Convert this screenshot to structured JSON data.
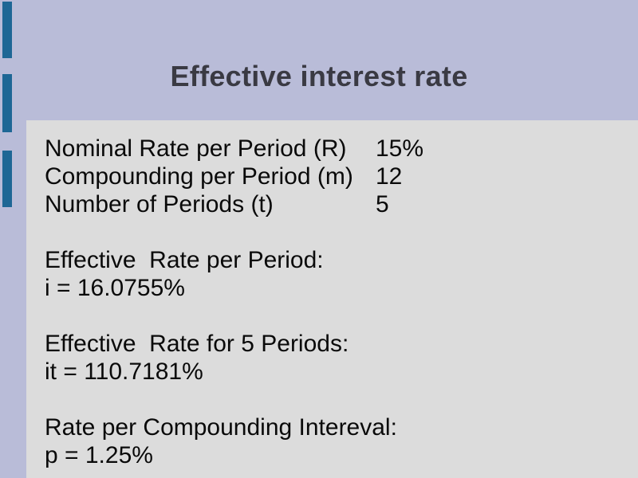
{
  "slide": {
    "title": "Effective interest rate",
    "inputs": [
      {
        "label": "Nominal Rate per Period (R)",
        "value": "15%"
      },
      {
        "label": "Compounding per Period (m)",
        "value": "12"
      },
      {
        "label": "Number of Periods (t)",
        "value": "5"
      }
    ],
    "results": [
      {
        "heading": "Effective  Rate per Period:",
        "value": "i = 16.0755%"
      },
      {
        "heading": "Effective  Rate for 5 Periods:",
        "value": "it = 110.7181%"
      },
      {
        "heading": "Rate per Compounding Intereval:",
        "value": "p = 1.25%"
      }
    ],
    "colors": {
      "background": "#b9bcd8",
      "panel": "#dcdcdc",
      "accent": "#1e6795",
      "title_text": "#3a3a43",
      "body_text": "#0a0a0a"
    }
  }
}
